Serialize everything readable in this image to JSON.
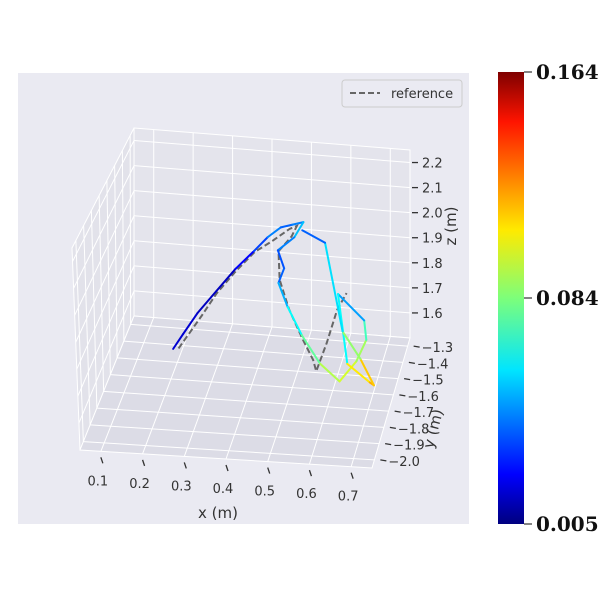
{
  "chart_data": {
    "type": "line",
    "projection": "3d",
    "xlabel": "x (m)",
    "ylabel": "y (m)",
    "zlabel": "z (m)",
    "x_ticks": [
      0.1,
      0.2,
      0.3,
      0.4,
      0.5,
      0.6,
      0.7
    ],
    "y_ticks": [
      -2.0,
      -1.9,
      -1.8,
      -1.7,
      -1.6,
      -1.5,
      -1.4,
      -1.3
    ],
    "z_ticks": [
      1.6,
      1.7,
      1.8,
      1.9,
      2.0,
      2.1,
      2.2
    ],
    "x_tick_labels": [
      "0.1",
      "0.2",
      "0.3",
      "0.4",
      "0.5",
      "0.6",
      "0.7"
    ],
    "y_tick_labels": [
      "−2.0",
      "−1.9",
      "−1.8",
      "−1.7",
      "−1.6",
      "−1.5",
      "−1.4",
      "−1.3"
    ],
    "z_tick_labels": [
      "1.6",
      "1.7",
      "1.8",
      "1.9",
      "2.0",
      "2.1",
      "2.2"
    ],
    "xlim": [
      0.05,
      0.75
    ],
    "ylim": [
      -2.05,
      -1.25
    ],
    "zlim": [
      1.5,
      2.25
    ],
    "grid": true,
    "legend": {
      "position": "upper right",
      "entries": [
        {
          "label": "reference",
          "style": "dashed",
          "color": "#666666"
        }
      ]
    },
    "colormap": "jet",
    "colorbar": {
      "min": 0.005,
      "mid": 0.084,
      "max": 0.164,
      "labels": [
        "0.164",
        "0.084",
        "0.005"
      ]
    },
    "series": [
      {
        "role": "reference",
        "style": "dashed",
        "color": "#666666",
        "points": [
          [
            0.22,
            -1.6,
            1.62
          ],
          [
            0.24,
            -1.58,
            1.66
          ],
          [
            0.27,
            -1.55,
            1.72
          ],
          [
            0.3,
            -1.5,
            1.78
          ],
          [
            0.34,
            -1.45,
            1.84
          ],
          [
            0.38,
            -1.4,
            1.89
          ],
          [
            0.42,
            -1.37,
            1.92
          ],
          [
            0.46,
            -1.35,
            1.96
          ],
          [
            0.48,
            -1.36,
            1.98
          ],
          [
            0.47,
            -1.38,
            1.95
          ],
          [
            0.44,
            -1.4,
            1.9
          ],
          [
            0.45,
            -1.45,
            1.82
          ],
          [
            0.48,
            -1.5,
            1.74
          ],
          [
            0.52,
            -1.55,
            1.66
          ],
          [
            0.55,
            -1.58,
            1.6
          ],
          [
            0.56,
            -1.6,
            1.57
          ],
          [
            0.58,
            -1.55,
            1.65
          ],
          [
            0.6,
            -1.5,
            1.75
          ],
          [
            0.62,
            -1.47,
            1.8
          ]
        ]
      },
      {
        "role": "estimate",
        "color_values": [
          0.02,
          0.015,
          0.02,
          0.01,
          0.02,
          0.03,
          0.04,
          0.05,
          0.03,
          0.06,
          0.05,
          0.04,
          0.035,
          0.045,
          0.06,
          0.07,
          0.09,
          0.095,
          0.1,
          0.08,
          0.07,
          0.03,
          0.1,
          0.115,
          0.12,
          0.105,
          0.07,
          0.05,
          0.03
        ],
        "points": [
          [
            0.21,
            -1.62,
            1.63
          ],
          [
            0.23,
            -1.59,
            1.67
          ],
          [
            0.26,
            -1.55,
            1.73
          ],
          [
            0.3,
            -1.5,
            1.79
          ],
          [
            0.34,
            -1.45,
            1.85
          ],
          [
            0.38,
            -1.41,
            1.9
          ],
          [
            0.41,
            -1.38,
            1.94
          ],
          [
            0.44,
            -1.36,
            1.97
          ],
          [
            0.47,
            -1.37,
            1.99
          ],
          [
            0.5,
            -1.38,
            2.01
          ],
          [
            0.48,
            -1.4,
            1.96
          ],
          [
            0.44,
            -1.41,
            1.91
          ],
          [
            0.46,
            -1.44,
            1.86
          ],
          [
            0.45,
            -1.47,
            1.82
          ],
          [
            0.48,
            -1.52,
            1.76
          ],
          [
            0.52,
            -1.56,
            1.68
          ],
          [
            0.57,
            -1.6,
            1.6
          ],
          [
            0.62,
            -1.62,
            1.55
          ],
          [
            0.66,
            -1.6,
            1.62
          ],
          [
            0.68,
            -1.56,
            1.68
          ],
          [
            0.67,
            -1.52,
            1.73
          ],
          [
            0.6,
            -1.48,
            1.8
          ],
          [
            0.64,
            -1.62,
            1.62
          ],
          [
            0.7,
            -1.66,
            1.58
          ],
          [
            0.71,
            -1.66,
            1.57
          ],
          [
            0.67,
            -1.6,
            1.63
          ],
          [
            0.62,
            -1.55,
            1.7
          ],
          [
            0.56,
            -1.42,
            1.96
          ],
          [
            0.5,
            -1.4,
            1.99
          ]
        ]
      }
    ]
  }
}
